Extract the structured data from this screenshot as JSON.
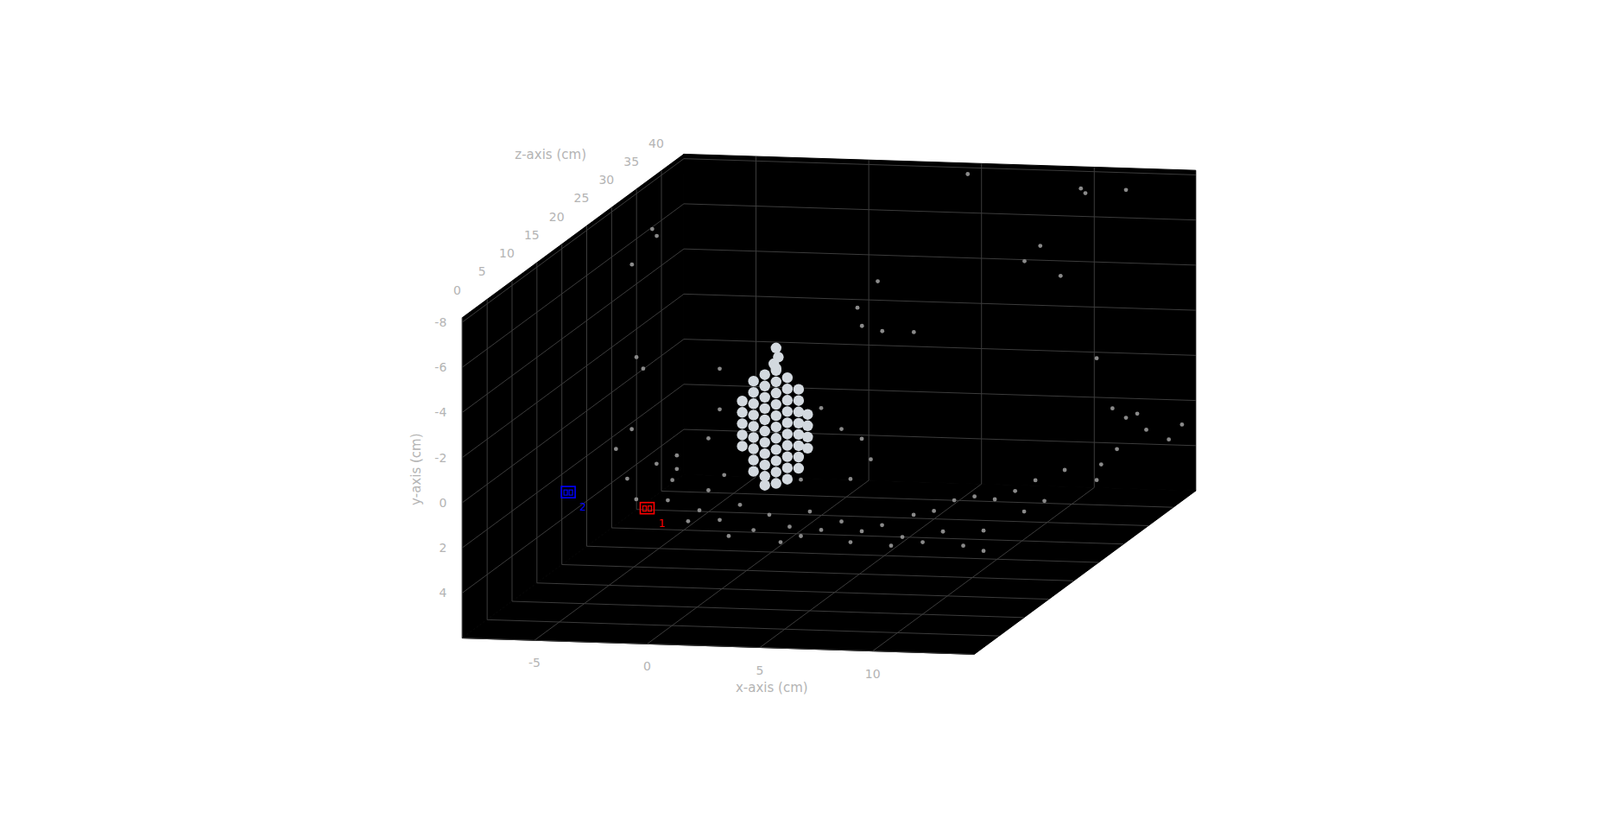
{
  "chart_data": {
    "type": "scatter3d",
    "xlabel": "x-axis (cm)",
    "ylabel": "y-axis (cm)",
    "zlabel": "z-axis (cm)",
    "xlim": [
      -8.2,
      14.5
    ],
    "ylim": [
      -8.2,
      6
    ],
    "zlim": [
      0,
      44.5
    ],
    "xticks": [
      -5,
      0,
      5,
      10
    ],
    "yticks": [
      -8,
      -6,
      -4,
      -2,
      0,
      2,
      4
    ],
    "zticks": [
      0,
      5,
      10,
      15,
      20,
      25,
      30,
      35,
      40
    ],
    "grid": true,
    "series": [
      {
        "color": "#8a8a8a",
        "marker": "o",
        "x": [
          -5.3,
          -4.0,
          -3.1,
          -3.3,
          -2.1,
          -1.7,
          -1.2,
          -1.0,
          -0.3,
          0.3,
          1.0,
          1.9,
          2.8,
          3.3,
          4.2,
          5.1,
          6.0,
          6.9,
          7.8,
          8.7,
          9.6,
          10.5,
          8.3,
          9.2,
          10.1,
          11.0,
          11.9,
          12.8,
          14.1,
          3.3,
          4.2,
          5.1,
          5.5,
          4.6,
          2.8,
          2.4,
          -1.2,
          -1.7,
          -3.1,
          -1.2,
          -4.9,
          -3.5,
          -2.6,
          -0.8,
          1.5,
          2.4,
          4.6,
          6.4,
          7.4,
          10.5,
          12.3,
          13.2,
          -5.8,
          -5.1,
          -6.4,
          -6.2,
          -7.3,
          -7.1,
          -6.8,
          2.9,
          3.8,
          5.2,
          2.7,
          3.6,
          11.8,
          12.4,
          12.9,
          13.3,
          14.3,
          12.0,
          11.3,
          11.1,
          10.4,
          10.6,
          8.6,
          9.5,
          7.9,
          11.1,
          12.4,
          14.0,
          4.5
        ],
        "y": [
          2.1,
          1.4,
          1.0,
          2.1,
          3.4,
          2.5,
          3.8,
          1.8,
          3.1,
          4.2,
          3.5,
          4.0,
          3.3,
          4.1,
          3.7,
          4.1,
          3.8,
          4.3,
          4.5,
          4.0,
          4.6,
          4.8,
          3.1,
          2.6,
          2.4,
          2.5,
          2.1,
          1.6,
          1.1,
          -1.3,
          -0.4,
          0.0,
          0.9,
          1.8,
          0.5,
          1.9,
          -1.1,
          0.2,
          1.6,
          -2.9,
          3.0,
          3.0,
          3.9,
          4.5,
          4.7,
          4.4,
          4.6,
          4.7,
          3.3,
          3.9,
          3.0,
          2.5,
          0.8,
          -0.1,
          -7.3,
          -7.0,
          -5.7,
          -1.6,
          -1.1,
          -3.3,
          -3.1,
          -3.1,
          -4.1,
          -5.3,
          1.7,
          2.1,
          1.9,
          2.6,
          3.0,
          3.5,
          4.2,
          4.9,
          -8.0,
          -7.8,
          -5.4,
          -4.1,
          -4.7,
          -0.5,
          -8.0,
          3.0,
          -7.8
        ],
        "z": [
          20,
          20,
          20,
          20,
          20,
          20,
          20,
          20,
          20,
          20,
          20,
          20,
          20,
          20,
          20,
          20,
          20,
          20,
          20,
          20,
          20,
          20,
          20,
          20,
          20,
          20,
          20,
          20,
          20,
          20,
          20,
          20,
          20,
          20,
          20,
          20,
          20,
          20,
          20,
          20,
          20,
          20,
          20,
          20,
          20,
          20,
          20,
          20,
          20,
          20,
          20,
          20,
          20,
          20,
          30,
          30,
          30,
          30,
          30,
          30,
          30,
          30,
          30,
          30,
          40,
          40,
          40,
          40,
          40,
          40,
          40,
          40,
          40,
          40,
          40,
          40,
          40,
          40,
          40,
          44,
          44
        ]
      },
      {
        "color": "#d3d9df",
        "marker": "o",
        "x": [
          -0.2,
          -0.2,
          -0.2,
          -0.2,
          -0.2,
          0.3,
          0.3,
          0.3,
          0.3,
          0.3,
          0.3,
          0.3,
          0.3,
          0.3,
          0.8,
          0.8,
          0.8,
          0.8,
          0.8,
          0.8,
          0.8,
          0.8,
          0.8,
          0.8,
          0.8,
          1.3,
          1.3,
          1.3,
          1.3,
          1.3,
          1.3,
          1.3,
          1.3,
          1.3,
          1.3,
          1.3,
          1.8,
          1.8,
          1.8,
          1.8,
          1.8,
          1.8,
          1.8,
          1.8,
          1.8,
          1.8,
          2.3,
          2.3,
          2.3,
          2.3,
          2.3,
          2.3,
          2.3,
          2.3,
          2.7,
          2.7,
          2.7,
          2.7,
          1.3,
          1.4,
          1.2,
          1.3
        ],
        "y": [
          -1.5,
          -1.0,
          -0.5,
          0,
          0.5,
          -2.4,
          -1.9,
          -1.4,
          -0.9,
          -0.4,
          0.1,
          0.6,
          1.1,
          1.6,
          -2.7,
          -2.2,
          -1.7,
          -1.2,
          -0.7,
          -0.2,
          0.3,
          0.8,
          1.3,
          1.8,
          2.2,
          -2.9,
          -2.4,
          -1.9,
          -1.4,
          -0.9,
          -0.4,
          0.1,
          0.6,
          1.1,
          1.6,
          2.1,
          -2.6,
          -2.1,
          -1.6,
          -1.1,
          -0.6,
          -0.1,
          0.4,
          0.9,
          1.4,
          1.9,
          -2.1,
          -1.6,
          -1.1,
          -0.6,
          -0.1,
          0.4,
          0.9,
          1.4,
          -1.0,
          -0.5,
          0,
          0.5,
          -3.9,
          -3.5,
          -3.2,
          -3.0
        ],
        "z": [
          20,
          20,
          20,
          20,
          20,
          20,
          20,
          20,
          20,
          20,
          20,
          20,
          20,
          20,
          20,
          20,
          20,
          20,
          20,
          20,
          20,
          20,
          20,
          20,
          20,
          20,
          20,
          20,
          20,
          20,
          20,
          20,
          20,
          20,
          20,
          20,
          20,
          20,
          20,
          20,
          20,
          20,
          20,
          20,
          20,
          20,
          20,
          20,
          20,
          20,
          20,
          20,
          20,
          20,
          20,
          20,
          20,
          20,
          20,
          20,
          20,
          20
        ]
      },
      {
        "marker": "camera",
        "colors": [
          "#ff0000",
          "#0000ff"
        ],
        "x": [
          0,
          -3.5
        ],
        "y": [
          0,
          -0.6
        ],
        "z": [
          0,
          0
        ],
        "labels": [
          "1",
          "2"
        ]
      }
    ]
  }
}
